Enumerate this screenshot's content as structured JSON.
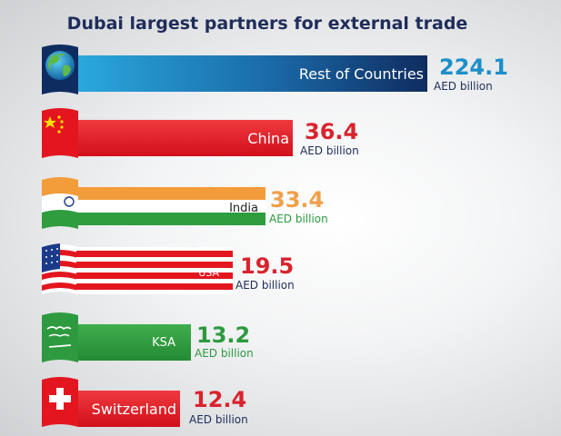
{
  "chart_data": {
    "type": "bar",
    "title": "Dubai largest partners for external trade",
    "unit": "AED billion",
    "categories": [
      "Rest of Countries",
      "China",
      "India",
      "USA",
      "KSA",
      "Switzerland"
    ],
    "values": [
      224.1,
      36.4,
      33.4,
      19.5,
      13.2,
      12.4
    ],
    "value_labels": [
      "224.1",
      "36.4",
      "33.4",
      "19.5",
      "13.2",
      "12.4"
    ],
    "flags": [
      "globe-icon",
      "china-flag-icon",
      "india-flag-icon",
      "usa-flag-icon",
      "ksa-flag-icon",
      "switzerland-flag-icon"
    ],
    "value_colors": [
      "#1c8fc9",
      "#d9232d",
      "#f0a04b",
      "#d9232d",
      "#2e9a3f",
      "#d9232d"
    ],
    "unit_colors": [
      "#1f2d5a",
      "#1f2d5a",
      "#2e9a3f",
      "#1f2d5a",
      "#2e9a3f",
      "#1f2d5a"
    ],
    "colors": {
      "title": "#1f2d5a",
      "china_red": "#e3161f",
      "india_saffron": "#f39c3a",
      "india_green": "#2f9d3e",
      "usa_red": "#e3161f",
      "ksa_green": "#2e9a3f",
      "swiss_red": "#e3161f",
      "globe_dark": "#0f2c60",
      "globe_light": "#2aa8dc"
    },
    "legend": "none",
    "grid": false
  }
}
